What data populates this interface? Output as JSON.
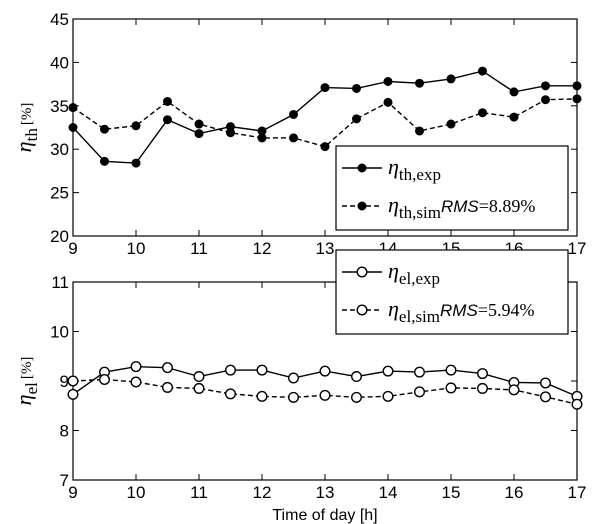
{
  "chart_data": [
    {
      "type": "line",
      "x": [
        9,
        9.5,
        10,
        10.5,
        11,
        11.5,
        12,
        12.5,
        13,
        13.5,
        14,
        14.5,
        15,
        15.5,
        16,
        16.5,
        17
      ],
      "xlim": [
        9,
        17
      ],
      "ylim": [
        20,
        45
      ],
      "xticks": [
        "9",
        "10",
        "11",
        "12",
        "13",
        "14",
        "15",
        "16",
        "17"
      ],
      "yticks": [
        "20",
        "25",
        "30",
        "35",
        "40",
        "45"
      ],
      "ylabel": {
        "symbol": "η",
        "sub": "th",
        "unit": "[%]"
      },
      "xlabel": "",
      "grid": false,
      "legend": "bottom-right",
      "series": [
        {
          "name": "η_th,exp",
          "label_sym": "η",
          "label_sub": "th,exp",
          "label_extra": "",
          "label_extra_val": "",
          "style": "solid",
          "marker": "filled-circle",
          "values": [
            32.5,
            28.6,
            28.4,
            33.4,
            31.8,
            32.6,
            32.1,
            34.0,
            37.1,
            37.0,
            37.8,
            37.6,
            38.1,
            39.0,
            36.6,
            37.3,
            37.3
          ]
        },
        {
          "name": "η_th,sim RMS=8.89%",
          "label_sym": "η",
          "label_sub": "th,sim",
          "label_extra": "RMS",
          "label_extra_val": "=8.89%",
          "style": "dashed",
          "marker": "filled-circle",
          "values": [
            34.8,
            32.3,
            32.7,
            35.5,
            32.9,
            31.9,
            31.3,
            31.3,
            30.3,
            33.5,
            35.4,
            32.1,
            32.9,
            34.2,
            33.7,
            35.7,
            35.8
          ]
        }
      ]
    },
    {
      "type": "line",
      "x": [
        9,
        9.5,
        10,
        10.5,
        11,
        11.5,
        12,
        12.5,
        13,
        13.5,
        14,
        14.5,
        15,
        15.5,
        16,
        16.5,
        17
      ],
      "xlim": [
        9,
        17
      ],
      "ylim": [
        7,
        11
      ],
      "xticks": [
        "9",
        "10",
        "11",
        "12",
        "13",
        "14",
        "15",
        "16",
        "17"
      ],
      "yticks": [
        "7",
        "8",
        "9",
        "10",
        "11"
      ],
      "ylabel": {
        "symbol": "η",
        "sub": "el",
        "unit": "[%]"
      },
      "xlabel": "Time of day [h]",
      "grid": false,
      "legend": "top-right",
      "series": [
        {
          "name": "η_el,exp",
          "label_sym": "η",
          "label_sub": "el,exp",
          "label_extra": "",
          "label_extra_val": "",
          "style": "solid",
          "marker": "open-circle",
          "values": [
            8.73,
            9.18,
            9.29,
            9.27,
            9.09,
            9.22,
            9.22,
            9.06,
            9.2,
            9.09,
            9.2,
            9.18,
            9.22,
            9.15,
            8.97,
            8.96,
            8.69
          ]
        },
        {
          "name": "η_el,sim RMS=5.94%",
          "label_sym": "η",
          "label_sub": "el,sim",
          "label_extra": "RMS",
          "label_extra_val": "=5.94%",
          "style": "dashed",
          "marker": "open-circle",
          "values": [
            9.0,
            9.03,
            8.98,
            8.87,
            8.85,
            8.74,
            8.69,
            8.67,
            8.71,
            8.67,
            8.69,
            8.78,
            8.86,
            8.85,
            8.82,
            8.68,
            8.53
          ]
        }
      ]
    }
  ]
}
